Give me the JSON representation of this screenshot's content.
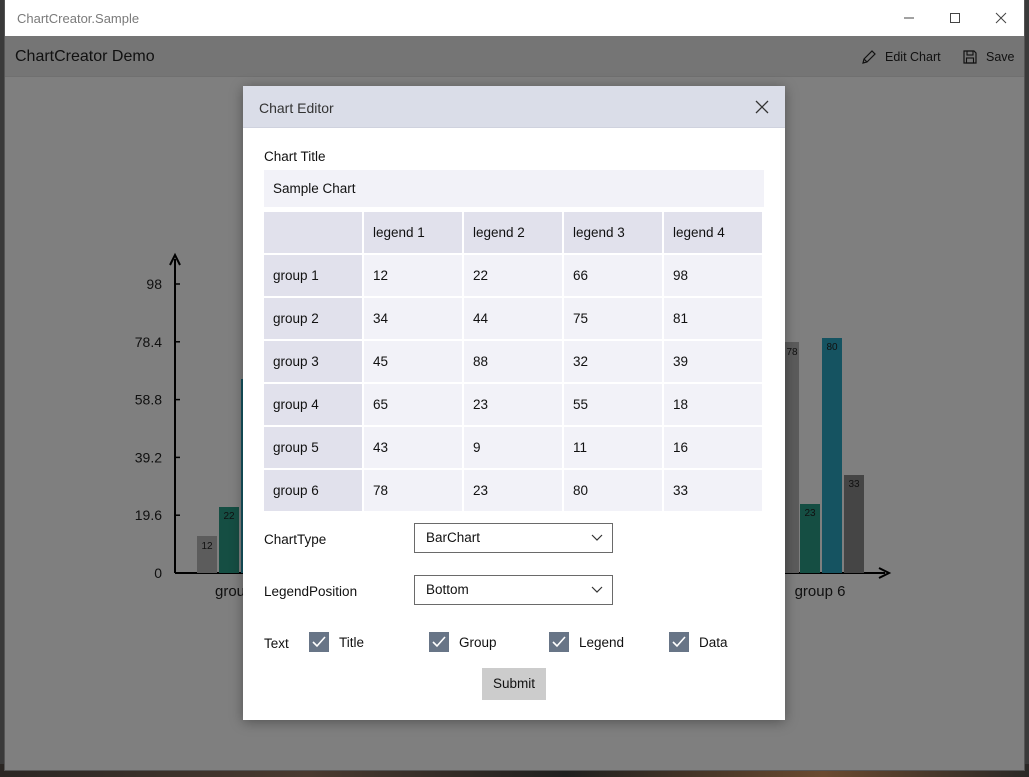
{
  "window": {
    "title": "ChartCreator.Sample",
    "minimize_icon": "minimize-icon",
    "maximize_icon": "maximize-icon",
    "close_icon": "close-icon"
  },
  "appbar": {
    "title": "ChartCreator Demo",
    "edit_label": "Edit Chart",
    "save_label": "Save"
  },
  "background_chart": {
    "y_ticks": [
      "0",
      "19.6",
      "39.2",
      "58.8",
      "78.4",
      "98"
    ],
    "left_group_label": "grou",
    "right_group_label": "group 6",
    "bar_labels_left": [
      "12",
      "22"
    ],
    "bar_labels_right": [
      "78",
      "23",
      "80",
      "33"
    ]
  },
  "dialog": {
    "title": "Chart Editor",
    "chart_title_label": "Chart Title",
    "chart_title_value": "Sample Chart",
    "table": {
      "columns": [
        "",
        "legend 1",
        "legend 2",
        "legend 3",
        "legend 4"
      ],
      "rows": [
        {
          "group": "group 1",
          "values": [
            "12",
            "22",
            "66",
            "98"
          ]
        },
        {
          "group": "group 2",
          "values": [
            "34",
            "44",
            "75",
            "81"
          ]
        },
        {
          "group": "group 3",
          "values": [
            "45",
            "88",
            "32",
            "39"
          ]
        },
        {
          "group": "group 4",
          "values": [
            "65",
            "23",
            "55",
            "18"
          ]
        },
        {
          "group": "group 5",
          "values": [
            "43",
            "9",
            "11",
            "16"
          ]
        },
        {
          "group": "group 6",
          "values": [
            "78",
            "23",
            "80",
            "33"
          ]
        }
      ]
    },
    "chart_type_label": "ChartType",
    "chart_type_value": "BarChart",
    "legend_position_label": "LegendPosition",
    "legend_position_value": "Bottom",
    "text_label": "Text",
    "checkboxes": [
      {
        "label": "Title",
        "checked": true
      },
      {
        "label": "Group",
        "checked": true
      },
      {
        "label": "Legend",
        "checked": true
      },
      {
        "label": "Data",
        "checked": true
      }
    ],
    "submit_label": "Submit"
  },
  "colors": {
    "overlay": "#000000",
    "dialog_header": "#dadde8",
    "checkbox": "#687587",
    "bar_gray": "#b8b8b8",
    "bar_green": "#2a9c86",
    "bar_teal": "#2aa7c2",
    "bar_darkgray": "#8a8a8a"
  }
}
